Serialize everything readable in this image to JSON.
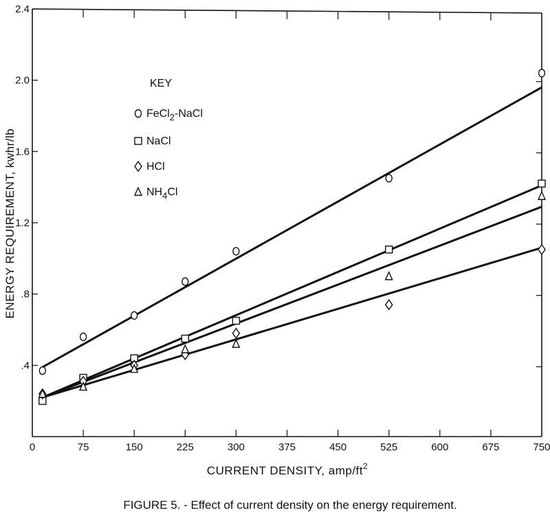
{
  "chart_data": {
    "type": "scatter",
    "title": "",
    "caption": "FIGURE 5. - Effect of current density on the energy requirement.",
    "xlabel": "CURRENT DENSITY, amp/ft",
    "xlabel_superscript": "2",
    "ylabel": "ENERGY REQUIREMENT, kwhr/lb",
    "xlim": [
      0,
      750
    ],
    "ylim": [
      0,
      2.4
    ],
    "x_ticks": [
      0,
      75,
      150,
      225,
      300,
      375,
      450,
      525,
      600,
      675,
      750
    ],
    "x_tick_labels": [
      "0",
      "75",
      "150",
      "225",
      "300",
      "375",
      "450",
      "525",
      "600",
      "675",
      "750"
    ],
    "y_ticks": [
      0.4,
      0.8,
      1.2,
      1.6,
      2.0,
      2.4
    ],
    "y_tick_labels": [
      ".4",
      ".8",
      "1.2",
      "1.6",
      "2.0",
      "2.4"
    ],
    "grid": false,
    "legend": {
      "title": "KEY",
      "position": "upper-left",
      "entries": [
        {
          "label": "FeCl2-NaCl",
          "marker": "circle"
        },
        {
          "label": "NaCl",
          "marker": "square"
        },
        {
          "label": "HCl",
          "marker": "diamond"
        },
        {
          "label": "NH4Cl",
          "marker": "triangle"
        }
      ]
    },
    "x": [
      15,
      75,
      150,
      225,
      300,
      525,
      750
    ],
    "series": [
      {
        "name": "FeCl2-NaCl",
        "marker": "circle",
        "values": [
          0.37,
          0.56,
          0.68,
          0.87,
          1.04,
          1.45,
          2.04
        ],
        "fit_line": {
          "x": [
            15,
            750
          ],
          "y": [
            0.39,
            1.96
          ]
        }
      },
      {
        "name": "NaCl",
        "marker": "square",
        "values": [
          0.2,
          0.33,
          0.44,
          0.55,
          0.65,
          1.05,
          1.42
        ],
        "fit_line": {
          "x": [
            15,
            750
          ],
          "y": [
            0.22,
            1.41
          ]
        }
      },
      {
        "name": "HCl",
        "marker": "diamond",
        "values": [
          0.24,
          0.31,
          0.4,
          0.46,
          0.58,
          0.74,
          1.05
        ],
        "fit_line": {
          "x": [
            15,
            750
          ],
          "y": [
            0.22,
            1.06
          ]
        }
      },
      {
        "name": "NH4Cl",
        "marker": "triangle",
        "values": [
          0.24,
          0.28,
          0.38,
          0.49,
          0.52,
          0.9,
          1.35
        ],
        "fit_line": {
          "x": [
            15,
            750
          ],
          "y": [
            0.22,
            1.29
          ]
        }
      }
    ]
  },
  "legend_display": {
    "title": "KEY",
    "items": [
      {
        "main": "FeCl",
        "sub": "2",
        "rest": "-NaCl"
      },
      {
        "main": "NaCl",
        "sub": "",
        "rest": ""
      },
      {
        "main": "HCl",
        "sub": "",
        "rest": ""
      },
      {
        "main": "NH",
        "sub": "4",
        "rest": "Cl"
      }
    ]
  }
}
